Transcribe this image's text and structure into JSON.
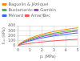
{
  "chart_data": {
    "type": "line",
    "xlabel": "pₗ (MPa)",
    "ylabel": "fₛₒₗ (kPa)",
    "x": [
      0.0,
      0.05,
      0.1,
      0.2,
      0.4,
      0.6,
      0.8,
      1.0,
      1.5,
      2.0,
      2.5,
      3.0,
      3.5,
      4.0,
      4.5,
      5.0
    ],
    "series": [
      {
        "name": "Baguelin & Jézéquel",
        "color": "#ff8800",
        "values": [
          0,
          18,
          32,
          52,
          82,
          108,
          130,
          150,
          192,
          228,
          258,
          282,
          305,
          325,
          342,
          358
        ]
      },
      {
        "name": "Bustamante",
        "color": "#44bb44",
        "values": [
          0,
          15,
          26,
          44,
          70,
          93,
          113,
          130,
          168,
          200,
          228,
          250,
          270,
          288,
          305,
          320
        ]
      },
      {
        "name": "Gambin",
        "color": "#aa44cc",
        "values": [
          0,
          13,
          22,
          38,
          62,
          82,
          100,
          116,
          150,
          180,
          205,
          226,
          245,
          262,
          278,
          292
        ]
      },
      {
        "name": "Ménard",
        "color": "#3366ff",
        "values": [
          0,
          10,
          18,
          30,
          50,
          68,
          84,
          98,
          128,
          154,
          176,
          195,
          212,
          228,
          242,
          255
        ]
      },
      {
        "name": "Amar/Bec",
        "color": "#ff5555",
        "values": [
          0,
          5,
          9,
          15,
          25,
          33,
          41,
          48,
          63,
          76,
          88,
          98,
          107,
          115,
          122,
          129
        ]
      }
    ],
    "xlim": [
      0,
      5
    ],
    "xticks": [
      0,
      1,
      2,
      3,
      4,
      5
    ],
    "ylim": [
      0,
      400
    ],
    "yticks": [
      0,
      100,
      200,
      300,
      400
    ],
    "grid": true,
    "legend": "upper left"
  }
}
